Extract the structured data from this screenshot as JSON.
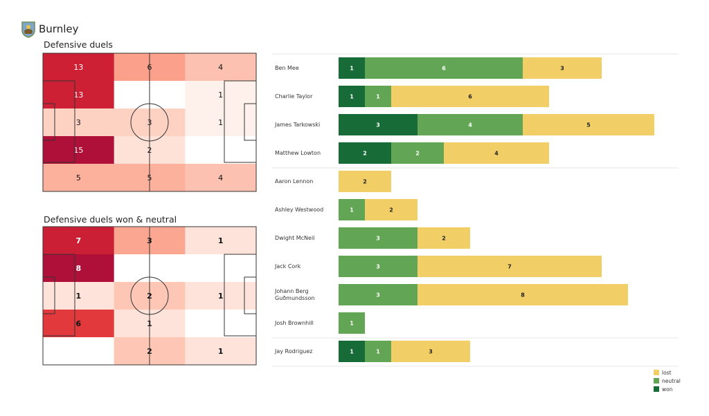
{
  "header": {
    "team": "Burnley",
    "logo_icon": "burnley-crest"
  },
  "chart_data": [
    {
      "type": "heatmap",
      "title": "Defensive duels",
      "rows": 5,
      "cols": 3,
      "values": [
        [
          13,
          6,
          4
        ],
        [
          13,
          0,
          1
        ],
        [
          3,
          3,
          1
        ],
        [
          15,
          2,
          0
        ],
        [
          5,
          5,
          4
        ]
      ],
      "colormap": "Reds"
    },
    {
      "type": "heatmap",
      "title": "Defensive duels won & neutral",
      "rows": 5,
      "cols": 3,
      "values": [
        [
          7,
          3,
          1
        ],
        [
          8,
          0,
          0
        ],
        [
          1,
          2,
          1
        ],
        [
          6,
          1,
          0
        ],
        [
          0,
          2,
          1
        ]
      ],
      "colormap": "Reds"
    },
    {
      "type": "bar",
      "orientation": "horizontal",
      "stacked": true,
      "categories": [
        "Ben Mee",
        "Charlie Taylor",
        "James  Tarkowski",
        "Matthew Lowton",
        "Aaron  Lennon",
        "Ashley Westwood",
        "Dwight McNeil",
        "Jack Cork",
        "Johann  Berg Guðmundsson",
        "Josh Brownhill",
        "Jay Rodriguez"
      ],
      "groups_separated_after": [
        3,
        9
      ],
      "series": [
        {
          "name": "won",
          "color": "#176b36",
          "values": [
            1,
            1,
            3,
            2,
            0,
            0,
            0,
            0,
            0,
            0,
            1
          ]
        },
        {
          "name": "neutral",
          "color": "#62a655",
          "values": [
            6,
            1,
            4,
            2,
            0,
            1,
            3,
            3,
            3,
            1,
            1
          ]
        },
        {
          "name": "lost",
          "color": "#f1cf66",
          "values": [
            3,
            6,
            5,
            4,
            2,
            2,
            2,
            7,
            8,
            0,
            3
          ]
        }
      ],
      "legend": [
        "lost",
        "neutral",
        "won"
      ],
      "legend_position": "bottom-right",
      "xlim": [
        0,
        12
      ]
    }
  ]
}
